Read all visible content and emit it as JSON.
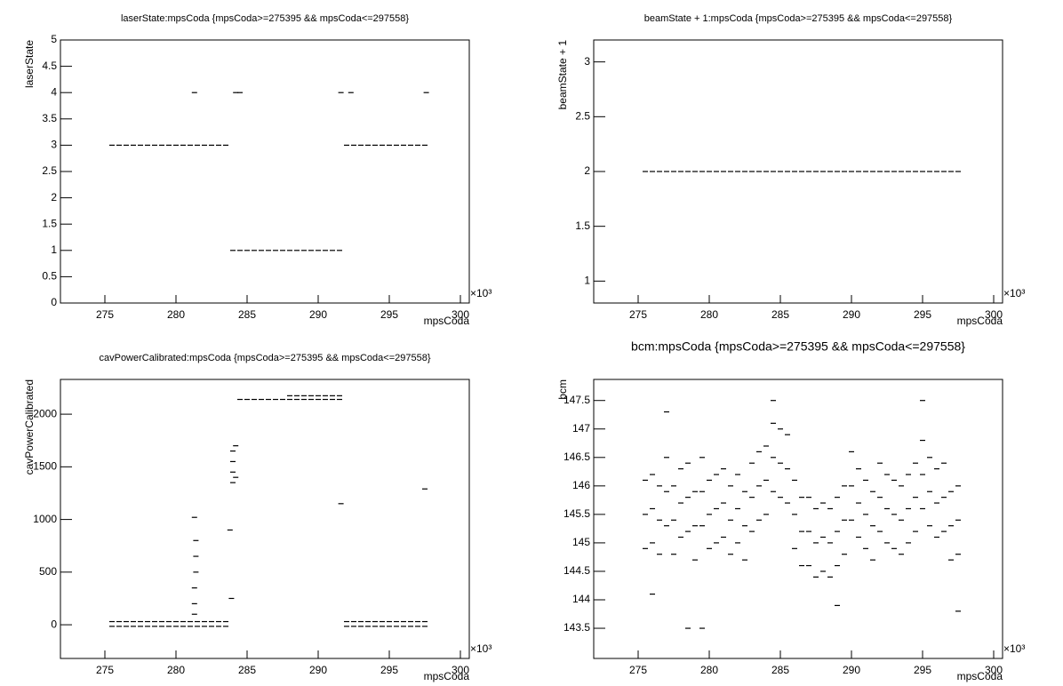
{
  "chart_data": [
    {
      "type": "scatter",
      "title": "laserState:mpsCoda {mpsCoda>=275395 && mpsCoda<=297558}",
      "x_label": "mpsCoda",
      "y_label": "laserState",
      "x_exponent": "×10³",
      "color": "#000000",
      "xlim": [
        271.875,
        300.625
      ],
      "xticks": [
        275,
        280,
        285,
        290,
        295,
        300
      ],
      "ylim": [
        0,
        5
      ],
      "yticks": [
        0,
        0.5,
        1,
        1.5,
        2,
        2.5,
        3,
        3.5,
        4,
        4.5,
        5
      ],
      "x": [
        275.5,
        276,
        276.5,
        277,
        277.5,
        278,
        278.5,
        279,
        279.5,
        280,
        280.5,
        281,
        281.5,
        282,
        282.5,
        283,
        283.5,
        284,
        284.5,
        285,
        285.5,
        286,
        286.5,
        287,
        287.5,
        288,
        288.5,
        289,
        289.5,
        290,
        290.5,
        291,
        291.5,
        292,
        292.5,
        293,
        293.5,
        294,
        294.5,
        295,
        295.5,
        296,
        296.5,
        297,
        297.5,
        281.3,
        284.2,
        284.5,
        291.6,
        292.3,
        297.6
      ],
      "values": [
        3,
        3,
        3,
        3,
        3,
        3,
        3,
        3,
        3,
        3,
        3,
        3,
        3,
        3,
        3,
        3,
        3,
        1,
        1,
        1,
        1,
        1,
        1,
        1,
        1,
        1,
        1,
        1,
        1,
        1,
        1,
        1,
        1,
        3,
        3,
        3,
        3,
        3,
        3,
        3,
        3,
        3,
        3,
        3,
        3,
        4,
        4,
        4,
        4,
        4,
        4
      ]
    },
    {
      "type": "scatter",
      "title": "beamState + 1:mpsCoda {mpsCoda>=275395 && mpsCoda<=297558}",
      "x_label": "mpsCoda",
      "y_label": "beamState + 1",
      "x_exponent": "×10³",
      "color": "#000000",
      "xlim": [
        271.875,
        300.625
      ],
      "xticks": [
        275,
        280,
        285,
        290,
        295,
        300
      ],
      "ylim": [
        0.8,
        3.2
      ],
      "yticks": [
        1,
        1.5,
        2,
        2.5,
        3
      ],
      "x": [
        275.5,
        276,
        276.5,
        277,
        277.5,
        278,
        278.5,
        279,
        279.5,
        280,
        280.5,
        281,
        281.5,
        282,
        282.5,
        283,
        283.5,
        284,
        284.5,
        285,
        285.5,
        286,
        286.5,
        287,
        287.5,
        288,
        288.5,
        289,
        289.5,
        290,
        290.5,
        291,
        291.5,
        292,
        292.5,
        293,
        293.5,
        294,
        294.5,
        295,
        295.5,
        296,
        296.5,
        297,
        297.5
      ],
      "values": [
        2,
        2,
        2,
        2,
        2,
        2,
        2,
        2,
        2,
        2,
        2,
        2,
        2,
        2,
        2,
        2,
        2,
        2,
        2,
        2,
        2,
        2,
        2,
        2,
        2,
        2,
        2,
        2,
        2,
        2,
        2,
        2,
        2,
        2,
        2,
        2,
        2,
        2,
        2,
        2,
        2,
        2,
        2,
        2,
        2
      ]
    },
    {
      "type": "scatter",
      "title": "cavPowerCalibrated:mpsCoda {mpsCoda>=275395 && mpsCoda<=297558}",
      "x_label": "mpsCoda",
      "y_label": "cavPowerCalibrated",
      "x_exponent": "×10³",
      "color": "#000000",
      "xlim": [
        271.875,
        300.625
      ],
      "xticks": [
        275,
        280,
        285,
        290,
        295,
        300
      ],
      "ylim": [
        -320,
        2330
      ],
      "yticks": [
        0,
        500,
        1000,
        1500,
        2000
      ],
      "x": [
        275.5,
        276,
        276.5,
        277,
        277.5,
        278,
        278.5,
        279,
        279.5,
        280,
        280.5,
        281,
        281.5,
        282,
        282.5,
        283,
        283.5,
        275.5,
        276,
        276.5,
        277,
        277.5,
        278,
        278.5,
        279,
        279.5,
        280,
        280.5,
        281,
        281.5,
        282,
        282.5,
        283,
        283.5,
        284.5,
        285,
        285.5,
        286,
        286.5,
        287,
        287.5,
        288,
        288.5,
        289,
        289.5,
        290,
        290.5,
        291,
        291.5,
        288,
        288.5,
        289,
        289.5,
        290,
        290.5,
        291,
        291.5,
        292,
        292.5,
        293,
        293.5,
        294,
        294.5,
        295,
        295.5,
        296,
        296.5,
        297,
        297.5,
        292,
        292.5,
        293,
        293.5,
        294,
        294.5,
        295,
        295.5,
        296,
        296.5,
        297,
        297.5,
        284,
        284,
        284,
        284,
        284.2,
        284.2,
        281.3,
        281.3,
        281.3,
        281.4,
        281.4,
        281.4,
        281.3,
        283.8,
        283.9,
        291.6,
        297.5
      ],
      "values": [
        30,
        30,
        30,
        30,
        30,
        30,
        30,
        30,
        30,
        30,
        30,
        30,
        30,
        30,
        30,
        30,
        30,
        -15,
        -15,
        -15,
        -15,
        -15,
        -15,
        -15,
        -15,
        -15,
        -15,
        -15,
        -15,
        -15,
        -15,
        -15,
        -15,
        -15,
        2140,
        2140,
        2140,
        2140,
        2140,
        2140,
        2140,
        2140,
        2140,
        2140,
        2140,
        2140,
        2140,
        2140,
        2140,
        2175,
        2175,
        2175,
        2175,
        2175,
        2175,
        2175,
        2175,
        30,
        30,
        30,
        30,
        30,
        30,
        30,
        30,
        30,
        30,
        30,
        30,
        -15,
        -15,
        -15,
        -15,
        -15,
        -15,
        -15,
        -15,
        -15,
        -15,
        -15,
        -15,
        1350,
        1450,
        1550,
        1650,
        1400,
        1700,
        100,
        200,
        350,
        500,
        650,
        800,
        1020,
        900,
        250,
        1150,
        1290
      ]
    },
    {
      "type": "scatter",
      "title": "bcm:mpsCoda {mpsCoda>=275395 && mpsCoda<=297558}",
      "x_label": "mpsCoda",
      "y_label": "bcm",
      "x_exponent": "×10³",
      "color": "#000000",
      "xlim": [
        271.875,
        300.625
      ],
      "xticks": [
        275,
        280,
        285,
        290,
        295,
        300
      ],
      "ylim": [
        142.97,
        147.87
      ],
      "yticks": [
        143.5,
        144,
        144.5,
        145,
        145.5,
        146,
        146.5,
        147,
        147.5
      ],
      "x": [
        275.5,
        276,
        276.5,
        277,
        277.5,
        278,
        278.5,
        279,
        279.5,
        280,
        280.5,
        281,
        281.5,
        282,
        282.5,
        283,
        283.5,
        284,
        284.5,
        285,
        285.5,
        286,
        286.5,
        287,
        287.5,
        288,
        288.5,
        289,
        289.5,
        290,
        290.5,
        291,
        291.5,
        292,
        292.5,
        293,
        293.5,
        294,
        294.5,
        295,
        295.5,
        296,
        296.5,
        297,
        297.5,
        275.5,
        276,
        276.5,
        277,
        277.5,
        278,
        278.5,
        279,
        279.5,
        280,
        280.5,
        281,
        281.5,
        282,
        282.5,
        283,
        283.5,
        284,
        284.5,
        285,
        285.5,
        286,
        286.5,
        287,
        287.5,
        288,
        288.5,
        289,
        289.5,
        290,
        290.5,
        291,
        291.5,
        292,
        292.5,
        293,
        293.5,
        294,
        294.5,
        295,
        295.5,
        296,
        296.5,
        297,
        297.5,
        275.5,
        276,
        276.5,
        277,
        277.5,
        278,
        278.5,
        279,
        279.5,
        280,
        280.5,
        281,
        281.5,
        282,
        282.5,
        283,
        283.5,
        284,
        284.5,
        285,
        285.5,
        286,
        286.5,
        287,
        287.5,
        288,
        288.5,
        289,
        289.5,
        290,
        290.5,
        291,
        291.5,
        292,
        292.5,
        293,
        293.5,
        294,
        294.5,
        295,
        295.5,
        296,
        296.5,
        297,
        297.5,
        276,
        277,
        278.5,
        279.5,
        284.5,
        289,
        295,
        297.5
      ],
      "values": [
        144.9,
        145.0,
        144.8,
        145.3,
        144.8,
        145.1,
        145.2,
        144.7,
        145.3,
        144.9,
        145.0,
        145.1,
        144.8,
        145.0,
        144.7,
        145.2,
        145.4,
        145.5,
        145.9,
        145.8,
        145.7,
        144.9,
        144.6,
        144.6,
        144.4,
        144.5,
        144.4,
        144.6,
        144.8,
        145.4,
        145.1,
        144.9,
        144.7,
        145.2,
        145.0,
        144.9,
        144.8,
        145.0,
        145.2,
        145.6,
        145.3,
        145.1,
        145.2,
        144.7,
        144.8,
        145.5,
        145.6,
        145.4,
        145.9,
        145.4,
        145.7,
        145.8,
        145.3,
        145.9,
        145.5,
        145.6,
        145.7,
        145.4,
        145.6,
        145.3,
        145.8,
        146.0,
        146.1,
        146.5,
        146.4,
        146.3,
        145.5,
        145.2,
        145.2,
        145.0,
        145.1,
        145.0,
        145.2,
        145.4,
        146.0,
        145.7,
        145.5,
        145.3,
        145.8,
        145.6,
        145.5,
        145.4,
        145.6,
        145.8,
        146.2,
        145.9,
        145.7,
        145.8,
        145.3,
        145.4,
        146.1,
        146.2,
        146.0,
        146.5,
        146.0,
        146.3,
        146.4,
        145.9,
        146.5,
        146.1,
        146.2,
        146.3,
        146.0,
        146.2,
        145.9,
        146.4,
        146.6,
        146.7,
        147.1,
        147.0,
        146.9,
        146.1,
        145.8,
        145.8,
        145.6,
        145.7,
        145.6,
        145.8,
        146.0,
        146.6,
        146.3,
        146.1,
        145.9,
        146.4,
        146.2,
        146.1,
        146.0,
        146.2,
        146.4,
        146.8,
        146.5,
        146.3,
        146.4,
        145.9,
        146.0,
        144.1,
        147.3,
        143.5,
        143.5,
        147.5,
        143.9,
        147.5,
        143.8
      ]
    }
  ]
}
